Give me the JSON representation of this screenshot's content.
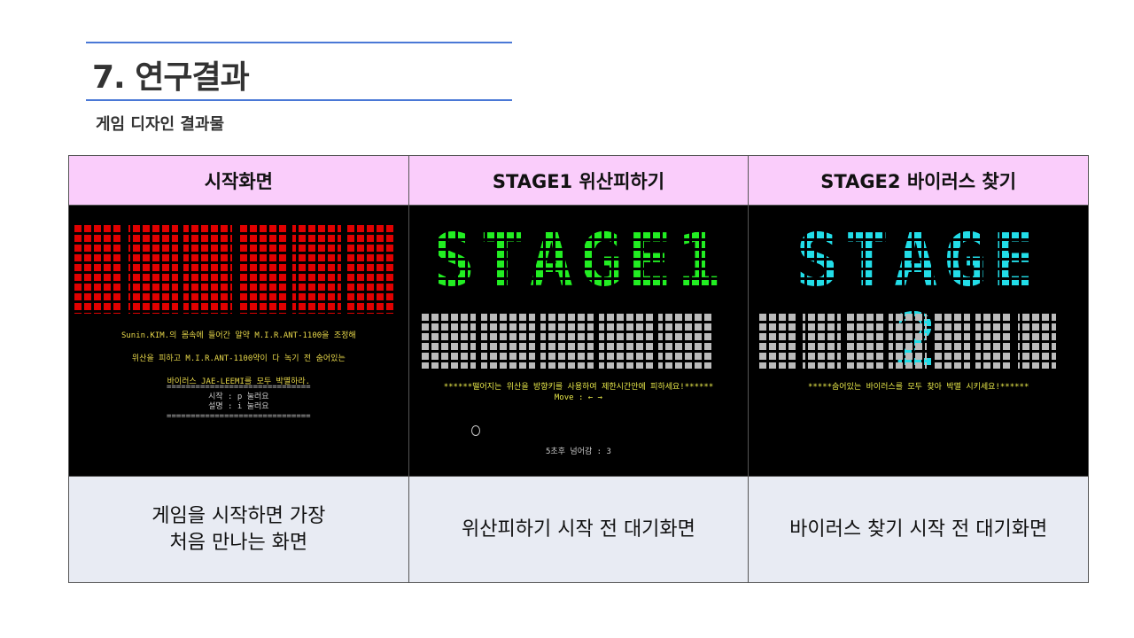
{
  "header": {
    "number": "7.",
    "title": "연구결과",
    "subtitle": "게임 디자인 결과물"
  },
  "table": {
    "headers": [
      "시작화면",
      "STAGE1 위산피하기",
      "STAGE2 바이러스 찾기"
    ],
    "screens": [
      {
        "lines": [
          "Sunin.KIM.의 몸속에 들어간 알약 M.I.R.ANT-1100을 조정해",
          "위산을 피하고 M.I.R.ANT-1100약이 다 녹기 전 숨어있는",
          "바이러스 JAE-LEEMI를 모두 박멸하라.",
          "==============================",
          "시작 : p 눌러요",
          "설명 : i 눌러요",
          "=============================="
        ]
      },
      {
        "banner": "STAGE1",
        "lines": [
          "******떨어지는 위산을 방향키를 사용하여 제한시간안에 피하세요!******",
          "Move : ← →"
        ],
        "countdown": "5초후 넘어감 :  3"
      },
      {
        "banner": "STAGE 2",
        "lines": [
          "*****숨어있는 바이러스를 모두 찾아 박멸 시키세요!******"
        ]
      }
    ],
    "descriptions": [
      "게임을 시작하면 가장\n처음 만나는 화면",
      "위산피하기 시작 전 대기화면",
      "바이러스 찾기 시작 전 대기화면"
    ]
  }
}
